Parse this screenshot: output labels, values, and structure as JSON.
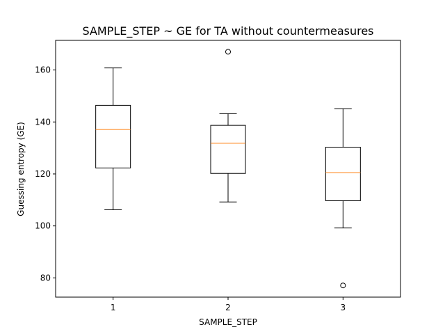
{
  "chart_data": {
    "type": "box",
    "title": "SAMPLE_STEP ~ GE for TA without countermeasures",
    "xlabel": "SAMPLE_STEP",
    "ylabel": "Guessing entropy (GE)",
    "categories": [
      "1",
      "2",
      "3"
    ],
    "yticks": [
      "80",
      "100",
      "120",
      "140",
      "160"
    ],
    "ylim": [
      72.6,
      171.4
    ],
    "grid": false,
    "boxes": [
      {
        "category": "1",
        "whisker_low": 106.2,
        "q1": 122.3,
        "median": 137.1,
        "q3": 146.4,
        "whisker_high": 160.8,
        "outliers": []
      },
      {
        "category": "2",
        "whisker_low": 109.2,
        "q1": 120.2,
        "median": 131.8,
        "q3": 138.7,
        "whisker_high": 143.2,
        "outliers": [
          167.0
        ]
      },
      {
        "category": "3",
        "whisker_low": 99.2,
        "q1": 109.7,
        "median": 120.5,
        "q3": 130.3,
        "whisker_high": 145.1,
        "outliers": [
          77.1
        ]
      }
    ],
    "colors": {
      "box": "#000000",
      "median": "#ff7f0e",
      "outlier_edge": "#000000"
    }
  }
}
